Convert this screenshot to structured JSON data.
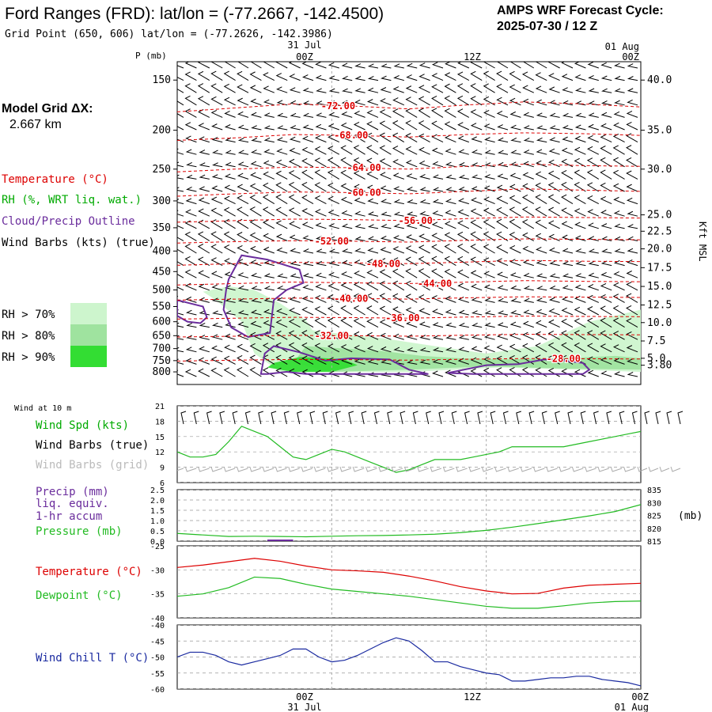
{
  "header": {
    "title": "Ford Ranges (FRD):  lat/lon = (-77.2667, -142.4500)",
    "grid_point": "Grid Point (650, 606) lat/lon = (-77.2626, -142.3986)",
    "cycle_label": "AMPS WRF Forecast Cycle:",
    "cycle_value": "2025-07-30 / 12  Z",
    "model_grid_label": "Model Grid ΔX:",
    "model_grid_value": "2.667 km"
  },
  "colors": {
    "temperature": "#dd0000",
    "rh_text": "#00aa00",
    "cloud": "#6a2c9c",
    "wind": "#000000",
    "grid_barb": "#aaaaaa",
    "precip": "#6a2c9c",
    "pressure": "#22bb22",
    "dewpoint": "#22bb22",
    "windchill": "#1a2aa0",
    "rh70": "#cdf5cd",
    "rh80": "#9fe39f",
    "rh90": "#33dd33"
  },
  "legend": {
    "temperature": "Temperature (°C)",
    "rh": "RH (%, WRT liq. wat.)",
    "cloud": "Cloud/Precip Outline",
    "wind": "Wind Barbs (kts) (true)",
    "rh70": "RH > 70%",
    "rh80": "RH > 80%",
    "rh90": "RH > 90%"
  },
  "time_axis": {
    "top_date": "31 Jul",
    "top_date_right": "01 Aug",
    "ticks": [
      "00Z",
      "12Z",
      "00Z"
    ],
    "bottom_date": "31 Jul",
    "bottom_date_right": "01 Aug"
  },
  "labels": {
    "p_axis": "P (mb)",
    "kft": "Kft MSL",
    "wind10m": "Wind at 10 m",
    "wind_spd": "Wind Spd (kts)",
    "wind_barbs_true": "Wind Barbs (true)",
    "wind_barbs_grid": "Wind Barbs (grid)",
    "precip1": "Precip (mm)",
    "precip2": "liq. equiv.",
    "precip3": "1-hr accum",
    "pressure": "Pressure (mb)",
    "pressure_unit": "(mb)",
    "temperature": "Temperature (°C)",
    "dewpoint": "Dewpoint (°C)",
    "windchill": "Wind Chill T (°C)"
  },
  "chart_data": [
    {
      "type": "heatmap",
      "name": "Time-height cross section",
      "x_unit": "forecast hours from 2025-07-30 12Z",
      "xlim": [
        0,
        36
      ],
      "p_ticks": [
        150,
        200,
        250,
        300,
        350,
        400,
        450,
        500,
        550,
        600,
        650,
        700,
        750,
        800
      ],
      "height_ticks": [
        {
          "label": "40.0",
          "p": 150
        },
        {
          "label": "35.0",
          "p": 200
        },
        {
          "label": "30.0",
          "p": 250
        },
        {
          "label": "25.0",
          "p": 325
        },
        {
          "label": "22.5",
          "p": 357
        },
        {
          "label": "20.0",
          "p": 395
        },
        {
          "label": "17.5",
          "p": 440
        },
        {
          "label": "15.0",
          "p": 490
        },
        {
          "label": "12.5",
          "p": 545
        },
        {
          "label": "10.0",
          "p": 603
        },
        {
          "label": "7.5",
          "p": 670
        },
        {
          "label": "5.0",
          "p": 740
        },
        {
          "label": "3.80",
          "p": 770
        }
      ],
      "isotherms": [
        {
          "label": "-72.00",
          "p": [
            180,
            176,
            172,
            174,
            177,
            173,
            170,
            172,
            175
          ],
          "label_x": 12.5
        },
        {
          "label": "-68.00",
          "p": [
            212,
            209,
            205,
            206,
            208,
            205,
            203,
            204,
            206
          ],
          "label_x": 13.5
        },
        {
          "label": "-64.00",
          "p": [
            254,
            250,
            247,
            248,
            250,
            246,
            243,
            245,
            246
          ],
          "label_x": 14.5
        },
        {
          "label": "-60.00",
          "p": [
            292,
            288,
            285,
            286,
            288,
            284,
            280,
            282,
            284
          ],
          "label_x": 14.5
        },
        {
          "label": "-56.00",
          "p": [
            339,
            336,
            333,
            334,
            336,
            332,
            329,
            330,
            331
          ],
          "label_x": 18.5
        },
        {
          "label": "-52.00",
          "p": [
            382,
            379,
            377,
            378,
            380,
            376,
            373,
            374,
            375
          ],
          "label_x": 12.0
        },
        {
          "label": "-48.00",
          "p": [
            434,
            430,
            427,
            428,
            430,
            426,
            422,
            424,
            425
          ],
          "label_x": 16.0
        },
        {
          "label": "-44.00",
          "p": [
            486,
            482,
            478,
            480,
            482,
            478,
            474,
            476,
            477
          ],
          "label_x": 20.0
        },
        {
          "label": "-40.00",
          "p": [
            530,
            527,
            524,
            525,
            527,
            523,
            520,
            521,
            522
          ],
          "label_x": 13.5
        },
        {
          "label": "-36.00",
          "p": [
            591,
            588,
            585,
            586,
            588,
            584,
            581,
            582,
            583
          ],
          "label_x": 17.5
        },
        {
          "label": "-32.00",
          "p": [
            655,
            652,
            649,
            650,
            652,
            648,
            645,
            646,
            647
          ],
          "label_x": 12.0
        },
        {
          "label": "-28.00",
          "p": [
            752,
            748,
            745,
            746,
            748,
            744,
            741,
            742,
            743
          ],
          "label_x": 30.0
        }
      ],
      "isotherm_x": [
        0,
        4.5,
        9,
        13.5,
        18,
        22.5,
        27,
        31.5,
        36
      ],
      "rh_regions": [
        {
          "level": 70,
          "x": [
            2,
            4,
            6,
            8,
            10,
            10.5,
            13,
            16,
            20,
            24,
            28,
            32,
            36,
            36,
            31,
            25,
            18,
            12,
            8,
            6,
            5,
            3
          ],
          "p": [
            505,
            490,
            500,
            540,
            595,
            630,
            645,
            660,
            690,
            720,
            690,
            600,
            560,
            800,
            790,
            780,
            800,
            800,
            800,
            720,
            600,
            530
          ]
        },
        {
          "level": 80,
          "x": [
            10,
            13,
            16,
            19,
            22,
            25,
            30,
            34,
            36,
            36,
            30,
            24,
            18,
            12,
            9
          ],
          "p": [
            690,
            700,
            710,
            730,
            740,
            745,
            740,
            730,
            740,
            790,
            785,
            775,
            790,
            800,
            760
          ]
        },
        {
          "level": 90,
          "x": [
            7.5,
            9.5,
            11,
            13,
            14,
            12,
            9,
            7
          ],
          "p": [
            760,
            735,
            738,
            745,
            770,
            800,
            800,
            780
          ]
        }
      ],
      "cloud_outlines": [
        {
          "x": [
            0,
            1,
            2,
            2.3,
            1.8,
            0.8,
            0
          ],
          "p": [
            530,
            540,
            550,
            585,
            605,
            600,
            580
          ]
        },
        {
          "x": [
            4,
            5,
            7,
            9.5,
            9.8,
            8.5,
            7.5,
            7.2,
            5.5,
            4.2,
            3.6,
            3.8,
            4
          ],
          "p": [
            470,
            410,
            420,
            445,
            480,
            500,
            530,
            640,
            655,
            620,
            560,
            500,
            470
          ]
        },
        {
          "x": [
            6.5,
            6.8,
            7.5,
            9.5,
            11.5,
            13.5,
            16.5,
            18,
            19.5,
            18,
            15,
            13,
            10,
            8.5,
            7
          ],
          "p": [
            810,
            720,
            690,
            715,
            750,
            740,
            745,
            790,
            810,
            810,
            810,
            810,
            810,
            800,
            810
          ]
        },
        {
          "x": [
            21,
            24,
            26.5,
            28.5,
            30,
            31.5,
            32,
            31.5,
            29,
            26,
            23,
            21
          ],
          "p": [
            805,
            770,
            765,
            745,
            750,
            760,
            790,
            810,
            810,
            810,
            810,
            805
          ]
        }
      ]
    },
    {
      "type": "line",
      "name": "Wind at 10 m",
      "ylim": [
        6,
        21
      ],
      "yticks": [
        6,
        9,
        12,
        15,
        18,
        21
      ],
      "x": [
        0,
        1,
        2,
        3,
        4,
        5,
        6,
        7,
        8,
        9,
        10,
        11,
        12,
        13,
        14,
        15,
        16,
        17,
        18,
        19,
        20,
        21,
        22,
        23,
        24,
        25,
        26,
        27,
        28,
        29,
        30,
        31,
        32,
        33,
        34,
        35,
        36
      ],
      "series": [
        {
          "name": "Wind Spd (kts)",
          "values": [
            12,
            11,
            11,
            11.5,
            14,
            17,
            16,
            15,
            13,
            11,
            10.5,
            11.5,
            12.5,
            12,
            11,
            10,
            9,
            8,
            8.5,
            9.5,
            10.5,
            10.5,
            10.5,
            11,
            11.5,
            12,
            13,
            13,
            13,
            13,
            13,
            13.5,
            14,
            14.5,
            15,
            15.5,
            16
          ]
        }
      ]
    },
    {
      "type": "line",
      "name": "Precip / Pressure",
      "ylim": [
        0,
        2.5
      ],
      "yticks": [
        0.0,
        0.5,
        1.0,
        1.5,
        2.0,
        2.5
      ],
      "y2lim": [
        815,
        835
      ],
      "y2ticks": [
        815,
        820,
        825,
        830,
        835
      ],
      "x": [
        0,
        2,
        4,
        6,
        8,
        10,
        12,
        14,
        16,
        18,
        20,
        22,
        24,
        26,
        28,
        30,
        32,
        34,
        36
      ],
      "series": [
        {
          "name": "Pressure (mb)",
          "axis": "right",
          "values": [
            818,
            817.4,
            816.8,
            816.9,
            816.8,
            816.7,
            816.9,
            817.1,
            817.2,
            817.4,
            817.7,
            818.3,
            819.2,
            820.4,
            821.8,
            823.3,
            824.8,
            826.5,
            829.2
          ]
        },
        {
          "name": "Precip (mm)",
          "axis": "left",
          "values": [
            0.02,
            0.0,
            0.0,
            0.0,
            0.0,
            0.0,
            0.0,
            0.0,
            0.0,
            0.0,
            0.0,
            0.0,
            0.0,
            0.0,
            0.0,
            0.0,
            0.0,
            0.0,
            0.0
          ]
        }
      ]
    },
    {
      "type": "line",
      "name": "Temperature / Dewpoint",
      "ylim": [
        -40,
        -25
      ],
      "yticks": [
        -40,
        -35,
        -30,
        -25
      ],
      "x": [
        0,
        2,
        4,
        6,
        8,
        10,
        12,
        14,
        16,
        18,
        20,
        22,
        24,
        26,
        28,
        30,
        32,
        34,
        36
      ],
      "series": [
        {
          "name": "Temperature (°C)",
          "values": [
            -29.5,
            -29,
            -28.3,
            -27.6,
            -28.2,
            -29.2,
            -30,
            -30.2,
            -30.5,
            -31.3,
            -32.3,
            -33.5,
            -34.4,
            -35,
            -34.9,
            -33.8,
            -33.2,
            -33,
            -32.8
          ]
        },
        {
          "name": "Dewpoint (°C)",
          "values": [
            -35.5,
            -35,
            -33.7,
            -31.5,
            -31.8,
            -33,
            -34,
            -34.5,
            -35,
            -35.5,
            -36.2,
            -36.9,
            -37.6,
            -38,
            -38,
            -37.5,
            -36.9,
            -36.6,
            -36.5
          ]
        }
      ]
    },
    {
      "type": "line",
      "name": "Wind Chill",
      "ylim": [
        -60,
        -40
      ],
      "yticks": [
        -60,
        -55,
        -50,
        -45,
        -40
      ],
      "x": [
        0,
        1,
        2,
        3,
        4,
        5,
        6,
        7,
        8,
        9,
        10,
        11,
        12,
        13,
        14,
        15,
        16,
        17,
        18,
        19,
        20,
        21,
        22,
        23,
        24,
        25,
        26,
        27,
        28,
        29,
        30,
        31,
        32,
        33,
        34,
        35,
        36
      ],
      "series": [
        {
          "name": "Wind Chill T (°C)",
          "values": [
            -50,
            -48.5,
            -48.5,
            -49.5,
            -51.5,
            -52.5,
            -51.5,
            -50.5,
            -49.5,
            -47.5,
            -47.5,
            -50,
            -51.5,
            -51,
            -49.5,
            -47.5,
            -45.5,
            -44,
            -45,
            -48,
            -51.5,
            -51.5,
            -53,
            -54,
            -55,
            -55.5,
            -57.5,
            -57.5,
            -57,
            -56.5,
            -56.5,
            -56,
            -56,
            -57,
            -57.5,
            -58,
            -59
          ]
        }
      ]
    }
  ]
}
